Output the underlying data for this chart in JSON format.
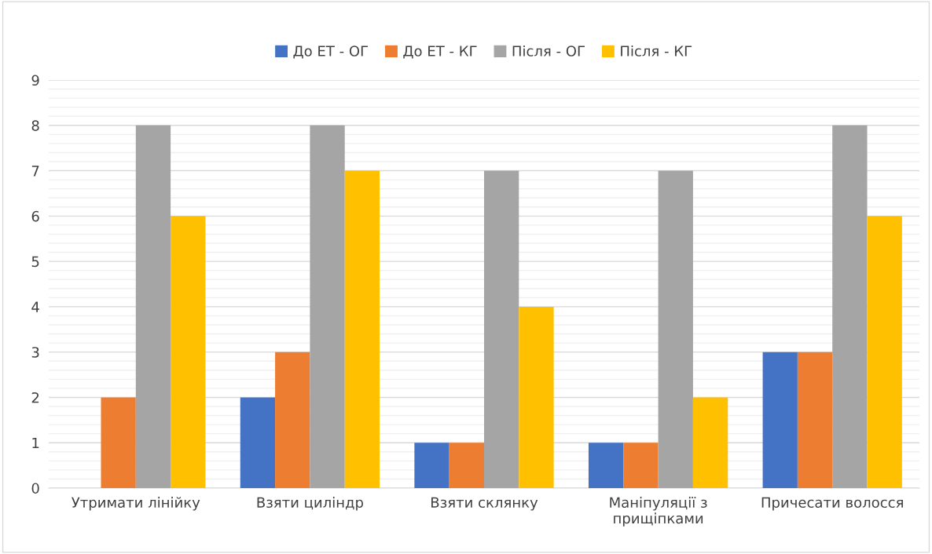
{
  "chart_data": {
    "type": "bar",
    "categories": [
      "Утримати лінійку",
      "Взяти циліндр",
      "Взяти склянку",
      "Маніпуляції з прищіпками",
      "Причесати волосся"
    ],
    "series": [
      {
        "name": "До ЕТ - ОГ",
        "color": "#4472c4",
        "values": [
          0,
          2,
          1,
          1,
          3
        ]
      },
      {
        "name": "До ЕТ - КГ",
        "color": "#ed7d31",
        "values": [
          2,
          3,
          1,
          1,
          3
        ]
      },
      {
        "name": "Після - ОГ",
        "color": "#a5a5a5",
        "values": [
          8,
          8,
          7,
          7,
          8
        ]
      },
      {
        "name": "Після - КГ",
        "color": "#ffc000",
        "values": [
          6,
          7,
          4,
          2,
          6
        ]
      }
    ],
    "ylim": [
      0,
      9
    ],
    "yticks": [
      0,
      1,
      2,
      3,
      4,
      5,
      6,
      7,
      8,
      9
    ],
    "grid": "y",
    "legend": "top"
  }
}
